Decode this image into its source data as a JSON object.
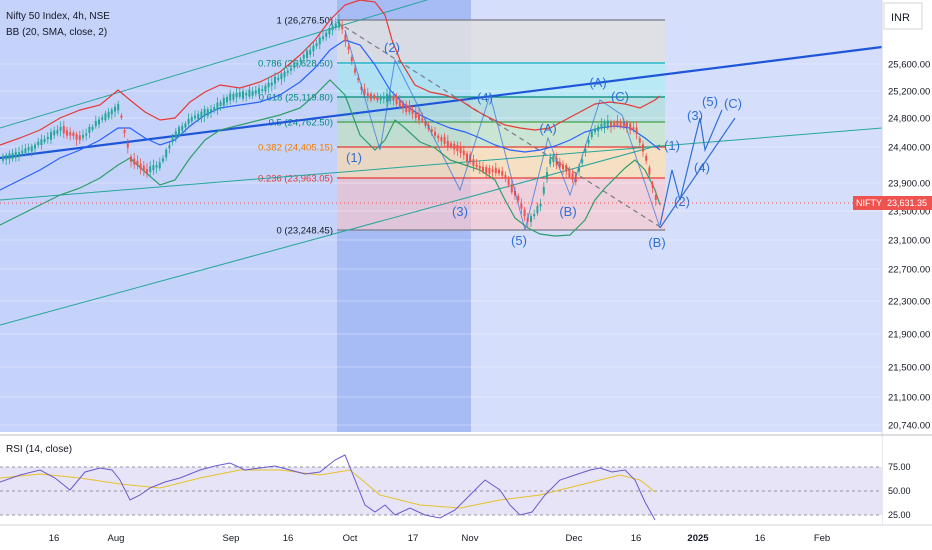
{
  "header": {
    "symbol_title": "Nifty 50 Index, 4h, NSE",
    "indicator_bb": "BB (20, SMA, close, 2)",
    "currency": "INR"
  },
  "rsi_panel": {
    "title": "RSI (14, close)"
  },
  "price_tag": {
    "symbol": "NIFTY",
    "price": "23,631.35"
  },
  "colors": {
    "background_left": "#c6d4fb",
    "background_mid": "#a9bcf6",
    "background_right": "#d6e0fc",
    "bb_upper": "#e53935",
    "bb_basis": "#2962ff",
    "bb_lower": "#2e9e6a",
    "trendline": "#1e56d9",
    "channel": "#26a69a",
    "wave_label": "#2f6fd6",
    "rsi_line": "#6a5acd",
    "rsi_ma": "#e6c229",
    "candle_up": "#26a69a",
    "candle_down": "#ef5350"
  },
  "chart_data": {
    "type": "candlestick",
    "y_axis": {
      "ticks": [
        "25,600.00",
        "25,200.00",
        "24,800.00",
        "24,400.00",
        "23,900.00",
        "23,500.00",
        "23,100.00",
        "22,700.00",
        "22,300.00",
        "21,900.00",
        "21,500.00",
        "21,100.00",
        "20,740.00"
      ],
      "values": [
        25600,
        25200,
        24800,
        24400,
        23900,
        23500,
        23100,
        22700,
        22300,
        21900,
        21500,
        21100,
        20740
      ]
    },
    "x_axis": {
      "ticks": [
        "16",
        "Aug",
        "Sep",
        "16",
        "Oct",
        "17",
        "Nov",
        "Dec",
        "16",
        "2025",
        "16",
        "Feb"
      ]
    },
    "last_price": 23631.35,
    "fibonacci": [
      {
        "label": "1 (26,276.50)",
        "ratio": 1,
        "price": 26276.5,
        "color": "#787b86"
      },
      {
        "label": "0.786 (25,628.50)",
        "ratio": 0.786,
        "price": 25628.5,
        "color": "#00bcd4"
      },
      {
        "label": "0.618 (25,119.80)",
        "ratio": 0.618,
        "price": 25119.8,
        "color": "#009688"
      },
      {
        "label": "0.5 (24,762.50)",
        "ratio": 0.5,
        "price": 24762.5,
        "color": "#26a69a"
      },
      {
        "label": "0.382 (24,405.15)",
        "ratio": 0.382,
        "price": 24405.15,
        "color": "#f57c00"
      },
      {
        "label": "0.236 (23,963.05)",
        "ratio": 0.236,
        "price": 23963.05,
        "color": "#e53935"
      },
      {
        "label": "0 (23,248.45)",
        "ratio": 0,
        "price": 23248.45,
        "color": "#787b86"
      }
    ],
    "wave_labels": [
      "(2)",
      "(1)",
      "(3)",
      "(4)",
      "(5)",
      "(A)",
      "(B)",
      "(C)",
      "(A)",
      "(B)",
      "(1)",
      "(2)",
      "(3)",
      "(4)",
      "(5)",
      "(C)"
    ],
    "rsi": {
      "levels": [
        "75.00",
        "50.00",
        "25.00"
      ],
      "values": [
        75,
        50,
        25
      ]
    }
  }
}
